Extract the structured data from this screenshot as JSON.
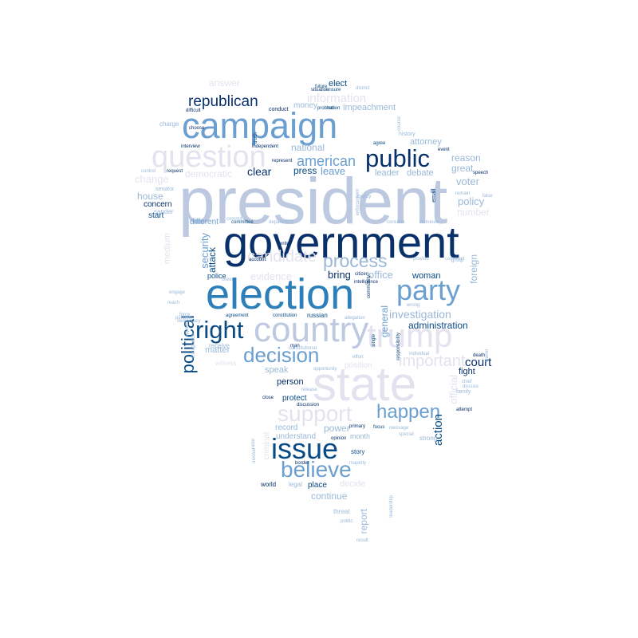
{
  "palette": {
    "navy": "#08306b",
    "dark_blue": "#084a84",
    "blue": "#2c7fb8",
    "mid_blue": "#6a9fcf",
    "light_blue": "#9ab8d8",
    "pale_blue": "#bcc9e0",
    "lavender": "#e4e2ee"
  },
  "words": [
    {
      "text": "president",
      "color": "pale_blue",
      "rotated": false
    },
    {
      "text": "government",
      "color": "navy",
      "rotated": false
    },
    {
      "text": "election",
      "color": "blue",
      "rotated": false
    },
    {
      "text": "campaign",
      "color": "mid_blue",
      "rotated": false
    },
    {
      "text": "state",
      "color": "lavender",
      "rotated": false
    },
    {
      "text": "country",
      "color": "pale_blue",
      "rotated": false
    },
    {
      "text": "trump",
      "color": "lavender",
      "rotated": false
    },
    {
      "text": "issue",
      "color": "dark_blue",
      "rotated": false
    },
    {
      "text": "question",
      "color": "lavender",
      "rotated": false
    },
    {
      "text": "party",
      "color": "mid_blue",
      "rotated": false
    },
    {
      "text": "public",
      "color": "navy",
      "rotated": false
    },
    {
      "text": "support",
      "color": "lavender",
      "rotated": false
    },
    {
      "text": "believe",
      "color": "mid_blue",
      "rotated": false
    },
    {
      "text": "right",
      "color": "dark_blue",
      "rotated": false
    },
    {
      "text": "decision",
      "color": "mid_blue",
      "rotated": false
    },
    {
      "text": "happen",
      "color": "mid_blue",
      "rotated": false
    },
    {
      "text": "political",
      "color": "dark_blue",
      "rotated": true
    },
    {
      "text": "process",
      "color": "light_blue",
      "rotated": false
    },
    {
      "text": "republican",
      "color": "navy",
      "rotated": false
    },
    {
      "text": "american",
      "color": "mid_blue",
      "rotated": false
    },
    {
      "text": "candidate",
      "color": "lavender",
      "rotated": false
    },
    {
      "text": "investigation",
      "color": "light_blue",
      "rotated": false
    },
    {
      "text": "important",
      "color": "lavender",
      "rotated": false
    },
    {
      "text": "administration",
      "color": "dark_blue",
      "rotated": false
    },
    {
      "text": "court",
      "color": "navy",
      "rotated": false
    },
    {
      "text": "action",
      "color": "dark_blue",
      "rotated": true
    },
    {
      "text": "clear",
      "color": "navy",
      "rotated": false
    },
    {
      "text": "press",
      "color": "dark_blue",
      "rotated": false
    },
    {
      "text": "leave",
      "color": "mid_blue",
      "rotated": false
    },
    {
      "text": "national",
      "color": "light_blue",
      "rotated": false
    },
    {
      "text": "information",
      "color": "lavender",
      "rotated": false
    },
    {
      "text": "impeachment",
      "color": "light_blue",
      "rotated": false
    },
    {
      "text": "money",
      "color": "light_blue",
      "rotated": false
    },
    {
      "text": "answer",
      "color": "lavender",
      "rotated": false
    },
    {
      "text": "elect",
      "color": "dark_blue",
      "rotated": false
    },
    {
      "text": "democratic",
      "color": "lavender",
      "rotated": false
    },
    {
      "text": "change",
      "color": "lavender",
      "rotated": false
    },
    {
      "text": "house",
      "color": "light_blue",
      "rotated": false
    },
    {
      "text": "concern",
      "color": "navy",
      "rotated": false
    },
    {
      "text": "start",
      "color": "dark_blue",
      "rotated": false
    },
    {
      "text": "different",
      "color": "mid_blue",
      "rotated": false
    },
    {
      "text": "security",
      "color": "mid_blue",
      "rotated": true
    },
    {
      "text": "attack",
      "color": "dark_blue",
      "rotated": true
    },
    {
      "text": "evidence",
      "color": "lavender",
      "rotated": false
    },
    {
      "text": "bring",
      "color": "navy",
      "rotated": false
    },
    {
      "text": "office",
      "color": "light_blue",
      "rotated": false
    },
    {
      "text": "woman",
      "color": "dark_blue",
      "rotated": false
    },
    {
      "text": "general",
      "color": "mid_blue",
      "rotated": true
    },
    {
      "text": "leader",
      "color": "light_blue",
      "rotated": false
    },
    {
      "text": "debate",
      "color": "light_blue",
      "rotated": false
    },
    {
      "text": "voter",
      "color": "light_blue",
      "rotated": false
    },
    {
      "text": "policy",
      "color": "light_blue",
      "rotated": false
    },
    {
      "text": "number",
      "color": "lavender",
      "rotated": false
    },
    {
      "text": "reason",
      "color": "light_blue",
      "rotated": false
    },
    {
      "text": "great",
      "color": "light_blue",
      "rotated": false
    },
    {
      "text": "attorney",
      "color": "light_blue",
      "rotated": false
    },
    {
      "text": "foreign",
      "color": "light_blue",
      "rotated": true
    },
    {
      "text": "official",
      "color": "lavender",
      "rotated": true
    },
    {
      "text": "fight",
      "color": "navy",
      "rotated": false
    },
    {
      "text": "family",
      "color": "light_blue",
      "rotated": false
    },
    {
      "text": "matter",
      "color": "light_blue",
      "rotated": false
    },
    {
      "text": "speak",
      "color": "light_blue",
      "rotated": false
    },
    {
      "text": "person",
      "color": "navy",
      "rotated": false
    },
    {
      "text": "protect",
      "color": "dark_blue",
      "rotated": false
    },
    {
      "text": "record",
      "color": "light_blue",
      "rotated": false
    },
    {
      "text": "power",
      "color": "light_blue",
      "rotated": false
    },
    {
      "text": "understand",
      "color": "light_blue",
      "rotated": false
    },
    {
      "text": "month",
      "color": "light_blue",
      "rotated": false
    },
    {
      "text": "story",
      "color": "dark_blue",
      "rotated": false
    },
    {
      "text": "place",
      "color": "dark_blue",
      "rotated": false
    },
    {
      "text": "legal",
      "color": "light_blue",
      "rotated": false
    },
    {
      "text": "world",
      "color": "navy",
      "rotated": false
    },
    {
      "text": "continue",
      "color": "light_blue",
      "rotated": false
    },
    {
      "text": "decide",
      "color": "lavender",
      "rotated": false
    },
    {
      "text": "threat",
      "color": "light_blue",
      "rotated": false
    },
    {
      "text": "report",
      "color": "light_blue",
      "rotated": true
    },
    {
      "text": "police",
      "color": "dark_blue",
      "rotated": false
    },
    {
      "text": "medium",
      "color": "lavender",
      "rotated": true
    },
    {
      "text": "criminal",
      "color": "lavender",
      "rotated": true
    },
    {
      "text": "strong",
      "color": "light_blue",
      "rotated": false
    },
    {
      "text": "message",
      "color": "light_blue",
      "rotated": false
    },
    {
      "text": "focus",
      "color": "dark_blue",
      "rotated": false
    },
    {
      "text": "russian",
      "color": "dark_blue",
      "rotated": false
    },
    {
      "text": "constitution",
      "color": "dark_blue",
      "rotated": false
    },
    {
      "text": "agreement",
      "color": "dark_blue",
      "rotated": false
    },
    {
      "text": "committee",
      "color": "dark_blue",
      "rotated": false
    },
    {
      "text": "department",
      "color": "light_blue",
      "rotated": false
    },
    {
      "text": "nominee",
      "color": "light_blue",
      "rotated": false
    },
    {
      "text": "consider",
      "color": "light_blue",
      "rotated": false
    },
    {
      "text": "email",
      "color": "dark_blue",
      "rotated": true
    },
    {
      "text": "agree",
      "color": "dark_blue",
      "rotated": false
    },
    {
      "text": "conduct",
      "color": "navy",
      "rotated": false
    },
    {
      "text": "truth",
      "color": "dark_blue",
      "rotated": true
    },
    {
      "text": "situation",
      "color": "navy",
      "rotated": false
    },
    {
      "text": "ensure",
      "color": "dark_blue",
      "rotated": false
    },
    {
      "text": "future",
      "color": "dark_blue",
      "rotated": false
    },
    {
      "text": "district",
      "color": "light_blue",
      "rotated": false
    },
    {
      "text": "nation",
      "color": "dark_blue",
      "rotated": false
    },
    {
      "text": "problem",
      "color": "dark_blue",
      "rotated": false
    },
    {
      "text": "difficult",
      "color": "navy",
      "rotated": false
    },
    {
      "text": "choose",
      "color": "navy",
      "rotated": false
    },
    {
      "text": "charge",
      "color": "light_blue",
      "rotated": false
    },
    {
      "text": "interview",
      "color": "navy",
      "rotated": false
    },
    {
      "text": "independent",
      "color": "navy",
      "rotated": false
    },
    {
      "text": "represent",
      "color": "navy",
      "rotated": false
    },
    {
      "text": "control",
      "color": "light_blue",
      "rotated": false
    },
    {
      "text": "request",
      "color": "navy",
      "rotated": false
    },
    {
      "text": "senator",
      "color": "light_blue",
      "rotated": false
    },
    {
      "text": "sander",
      "color": "light_blue",
      "rotated": false
    },
    {
      "text": "history",
      "color": "light_blue",
      "rotated": false
    },
    {
      "text": "event",
      "color": "navy",
      "rotated": false
    },
    {
      "text": "speech",
      "color": "navy",
      "rotated": false
    },
    {
      "text": "course",
      "color": "light_blue",
      "rotated": true
    },
    {
      "text": "agency",
      "color": "light_blue",
      "rotated": false
    },
    {
      "text": "enforcement",
      "color": "light_blue",
      "rotated": true
    },
    {
      "text": "citizen",
      "color": "navy",
      "rotated": false
    },
    {
      "text": "intelligence",
      "color": "navy",
      "rotated": false
    },
    {
      "text": "community",
      "color": "navy",
      "rotated": true
    },
    {
      "text": "provide",
      "color": "light_blue",
      "rotated": false
    },
    {
      "text": "group",
      "color": "light_blue",
      "rotated": false
    },
    {
      "text": "comment",
      "color": "light_blue",
      "rotated": false
    },
    {
      "text": "write",
      "color": "navy",
      "rotated": false
    },
    {
      "text": "account",
      "color": "navy",
      "rotated": false
    },
    {
      "text": "cover",
      "color": "light_blue",
      "rotated": false
    },
    {
      "text": "commit",
      "color": "light_blue",
      "rotated": false
    },
    {
      "text": "engage",
      "color": "light_blue",
      "rotated": false
    },
    {
      "text": "reach",
      "color": "light_blue",
      "rotated": false
    },
    {
      "text": "force",
      "color": "light_blue",
      "rotated": false
    },
    {
      "text": "percent",
      "color": "light_blue",
      "rotated": false
    },
    {
      "text": "democracy",
      "color": "light_blue",
      "rotated": false
    },
    {
      "text": "appear",
      "color": "light_blue",
      "rotated": true
    },
    {
      "text": "immigration",
      "color": "light_blue",
      "rotated": true
    },
    {
      "text": "receive",
      "color": "light_blue",
      "rotated": false
    },
    {
      "text": "witness",
      "color": "lavender",
      "rotated": false
    },
    {
      "text": "man",
      "color": "navy",
      "rotated": false
    },
    {
      "text": "constitutional",
      "color": "light_blue",
      "rotated": false
    },
    {
      "text": "opportunity",
      "color": "light_blue",
      "rotated": false
    },
    {
      "text": "effort",
      "color": "light_blue",
      "rotated": false
    },
    {
      "text": "position",
      "color": "lavender",
      "rotated": false
    },
    {
      "text": "single",
      "color": "dark_blue",
      "rotated": true
    },
    {
      "text": "responsibility",
      "color": "dark_blue",
      "rotated": true
    },
    {
      "text": "individual",
      "color": "light_blue",
      "rotated": false
    },
    {
      "text": "death",
      "color": "navy",
      "rotated": false
    },
    {
      "text": "chief",
      "color": "light_blue",
      "rotated": false
    },
    {
      "text": "discuss",
      "color": "light_blue",
      "rotated": false
    },
    {
      "text": "spend",
      "color": "light_blue",
      "rotated": true
    },
    {
      "text": "attempt",
      "color": "navy",
      "rotated": false
    },
    {
      "text": "wrong",
      "color": "light_blue",
      "rotated": false
    },
    {
      "text": "allegation",
      "color": "light_blue",
      "rotated": false
    },
    {
      "text": "close",
      "color": "navy",
      "rotated": false
    },
    {
      "text": "release",
      "color": "light_blue",
      "rotated": false
    },
    {
      "text": "discussion",
      "color": "navy",
      "rotated": false
    },
    {
      "text": "raise",
      "color": "light_blue",
      "rotated": true
    },
    {
      "text": "involve",
      "color": "light_blue",
      "rotated": true
    },
    {
      "text": "opinion",
      "color": "navy",
      "rotated": false
    },
    {
      "text": "primary",
      "color": "navy",
      "rotated": false
    },
    {
      "text": "special",
      "color": "light_blue",
      "rotated": false
    },
    {
      "text": "border",
      "color": "navy",
      "rotated": false
    },
    {
      "text": "majority",
      "color": "light_blue",
      "rotated": false
    },
    {
      "text": "leadership",
      "color": "light_blue",
      "rotated": true
    },
    {
      "text": "politic",
      "color": "light_blue",
      "rotated": false
    },
    {
      "text": "result",
      "color": "light_blue",
      "rotated": false
    },
    {
      "text": "remain",
      "color": "light_blue",
      "rotated": false
    },
    {
      "text": "false",
      "color": "light_blue",
      "rotated": false
    }
  ]
}
